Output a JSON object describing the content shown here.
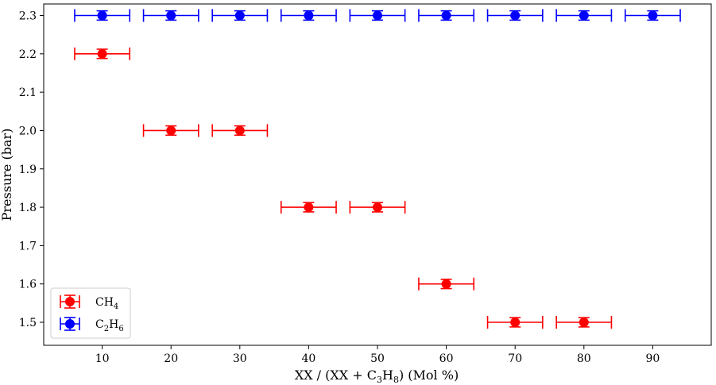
{
  "chart_data": {
    "type": "scatter",
    "xlabel": "XX / (XX + C3H8) (Mol %)",
    "ylabel": "Pressure (bar)",
    "xlim": [
      1.5,
      98.5
    ],
    "ylim": [
      1.44,
      2.33
    ],
    "xticks": [
      10,
      20,
      30,
      40,
      50,
      60,
      70,
      80,
      90
    ],
    "yticks": [
      1.5,
      1.6,
      1.7,
      1.8,
      1.9,
      2.0,
      2.1,
      2.2,
      2.3
    ],
    "ytick_labels": [
      "1.5",
      "1.6",
      "1.7",
      "1.8",
      "1.9",
      "2.0",
      "2.1",
      "2.2",
      "2.3"
    ],
    "grid": false,
    "legend_position": "lower-left",
    "series": [
      {
        "name": "CH4",
        "legend_label": "CH",
        "legend_sub": "4",
        "color": "#ff0000",
        "x": [
          10,
          20,
          30,
          40,
          50,
          60,
          70,
          80
        ],
        "y": [
          2.2,
          2.0,
          2.0,
          1.8,
          1.8,
          1.6,
          1.5,
          1.5
        ],
        "xerr": 4,
        "yerr": 0.008
      },
      {
        "name": "C2H6",
        "legend_label": "C",
        "legend_sub": "2",
        "legend_label2": "H",
        "legend_sub2": "6",
        "color": "#0000ff",
        "x": [
          10,
          20,
          30,
          40,
          50,
          60,
          70,
          80,
          90
        ],
        "y": [
          2.3,
          2.3,
          2.3,
          2.3,
          2.3,
          2.3,
          2.3,
          2.3,
          2.3
        ],
        "xerr": 4,
        "yerr": 0.008
      }
    ]
  }
}
